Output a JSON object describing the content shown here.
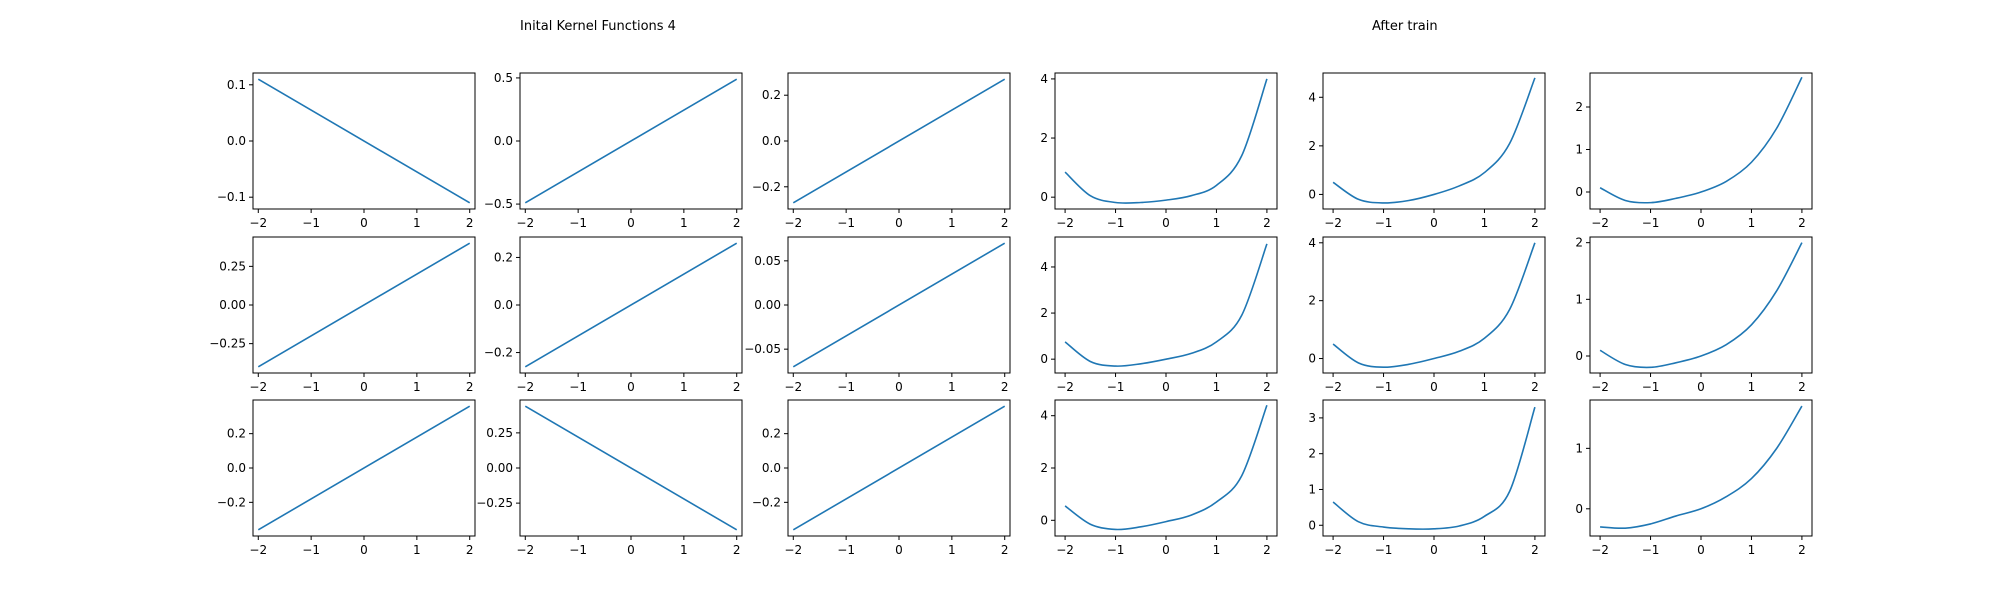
{
  "figure": {
    "left_title": "Inital Kernel Functions 4",
    "right_title": "After train",
    "line_color": "#1f77b4",
    "axes_color": "#000000",
    "background": "#ffffff"
  },
  "chart_data": [
    {
      "type": "line",
      "group": "initial",
      "row": 0,
      "col": 0,
      "x": [
        -2,
        2
      ],
      "y": [
        0.11,
        -0.11
      ],
      "xlim": [
        -2.1,
        2.1
      ],
      "ylim": [
        -0.121,
        0.121
      ],
      "xticks": [
        -2,
        -1,
        0,
        1,
        2
      ],
      "xtick_labels": [
        "−2",
        "−1",
        "0",
        "1",
        "2"
      ],
      "yticks": [
        -0.1,
        0,
        0.1
      ],
      "ytick_labels": [
        "−0.1",
        "0.0",
        "0.1"
      ],
      "grid": false
    },
    {
      "type": "line",
      "group": "initial",
      "row": 0,
      "col": 1,
      "x": [
        -2,
        2
      ],
      "y": [
        -0.49,
        0.49
      ],
      "xlim": [
        -2.1,
        2.1
      ],
      "ylim": [
        -0.539,
        0.539
      ],
      "xticks": [
        -2,
        -1,
        0,
        1,
        2
      ],
      "xtick_labels": [
        "−2",
        "−1",
        "0",
        "1",
        "2"
      ],
      "yticks": [
        -0.5,
        0,
        0.5
      ],
      "ytick_labels": [
        "−0.5",
        "0.0",
        "0.5"
      ],
      "grid": false
    },
    {
      "type": "line",
      "group": "initial",
      "row": 0,
      "col": 2,
      "x": [
        -2,
        2
      ],
      "y": [
        -0.27,
        0.27
      ],
      "xlim": [
        -2.1,
        2.1
      ],
      "ylim": [
        -0.297,
        0.297
      ],
      "xticks": [
        -2,
        -1,
        0,
        1,
        2
      ],
      "xtick_labels": [
        "−2",
        "−1",
        "0",
        "1",
        "2"
      ],
      "yticks": [
        -0.2,
        0,
        0.2
      ],
      "ytick_labels": [
        "−0.2",
        "0.0",
        "0.2"
      ],
      "grid": false
    },
    {
      "type": "line",
      "group": "initial",
      "row": 1,
      "col": 0,
      "x": [
        -2,
        2
      ],
      "y": [
        -0.4,
        0.4
      ],
      "xlim": [
        -2.1,
        2.1
      ],
      "ylim": [
        -0.44,
        0.44
      ],
      "xticks": [
        -2,
        -1,
        0,
        1,
        2
      ],
      "xtick_labels": [
        "−2",
        "−1",
        "0",
        "1",
        "2"
      ],
      "yticks": [
        -0.25,
        0,
        0.25
      ],
      "ytick_labels": [
        "−0.25",
        "0.00",
        "0.25"
      ],
      "grid": false
    },
    {
      "type": "line",
      "group": "initial",
      "row": 1,
      "col": 1,
      "x": [
        -2,
        2
      ],
      "y": [
        -0.26,
        0.26
      ],
      "xlim": [
        -2.1,
        2.1
      ],
      "ylim": [
        -0.286,
        0.286
      ],
      "xticks": [
        -2,
        -1,
        0,
        1,
        2
      ],
      "xtick_labels": [
        "−2",
        "−1",
        "0",
        "1",
        "2"
      ],
      "yticks": [
        -0.2,
        0,
        0.2
      ],
      "ytick_labels": [
        "−0.2",
        "0.0",
        "0.2"
      ],
      "grid": false
    },
    {
      "type": "line",
      "group": "initial",
      "row": 1,
      "col": 2,
      "x": [
        -2,
        2
      ],
      "y": [
        -0.07,
        0.07
      ],
      "xlim": [
        -2.1,
        2.1
      ],
      "ylim": [
        -0.077,
        0.077
      ],
      "xticks": [
        -2,
        -1,
        0,
        1,
        2
      ],
      "xtick_labels": [
        "−2",
        "−1",
        "0",
        "1",
        "2"
      ],
      "yticks": [
        -0.05,
        0,
        0.05
      ],
      "ytick_labels": [
        "−0.05",
        "0.00",
        "0.05"
      ],
      "grid": false
    },
    {
      "type": "line",
      "group": "initial",
      "row": 2,
      "col": 0,
      "x": [
        -2,
        2
      ],
      "y": [
        -0.36,
        0.36
      ],
      "xlim": [
        -2.1,
        2.1
      ],
      "ylim": [
        -0.396,
        0.396
      ],
      "xticks": [
        -2,
        -1,
        0,
        1,
        2
      ],
      "xtick_labels": [
        "−2",
        "−1",
        "0",
        "1",
        "2"
      ],
      "yticks": [
        -0.2,
        0,
        0.2
      ],
      "ytick_labels": [
        "−0.2",
        "0.0",
        "0.2"
      ],
      "grid": false
    },
    {
      "type": "line",
      "group": "initial",
      "row": 2,
      "col": 1,
      "x": [
        -2,
        2
      ],
      "y": [
        0.44,
        -0.44
      ],
      "xlim": [
        -2.1,
        2.1
      ],
      "ylim": [
        -0.484,
        0.484
      ],
      "xticks": [
        -2,
        -1,
        0,
        1,
        2
      ],
      "xtick_labels": [
        "−2",
        "−1",
        "0",
        "1",
        "2"
      ],
      "yticks": [
        -0.25,
        0,
        0.25
      ],
      "ytick_labels": [
        "−0.25",
        "0.00",
        "0.25"
      ],
      "grid": false
    },
    {
      "type": "line",
      "group": "initial",
      "row": 2,
      "col": 2,
      "x": [
        -2,
        2
      ],
      "y": [
        -0.36,
        0.36
      ],
      "xlim": [
        -2.1,
        2.1
      ],
      "ylim": [
        -0.396,
        0.396
      ],
      "xticks": [
        -2,
        -1,
        0,
        1,
        2
      ],
      "xtick_labels": [
        "−2",
        "−1",
        "0",
        "1",
        "2"
      ],
      "yticks": [
        -0.2,
        0,
        0.2
      ],
      "ytick_labels": [
        "−0.2",
        "0.0",
        "0.2"
      ],
      "grid": false
    },
    {
      "type": "line",
      "group": "after",
      "row": 0,
      "col": 0,
      "x": [
        -2,
        -1.5,
        -1,
        -0.5,
        0,
        0.5,
        1,
        1.5,
        2
      ],
      "y": [
        0.85,
        0.05,
        -0.18,
        -0.18,
        -0.1,
        0.05,
        0.4,
        1.4,
        4.0
      ],
      "xlim": [
        -2.2,
        2.2
      ],
      "ylim": [
        -0.4,
        4.2
      ],
      "xticks": [
        -2,
        -1,
        0,
        1,
        2
      ],
      "xtick_labels": [
        "−2",
        "−1",
        "0",
        "1",
        "2"
      ],
      "yticks": [
        0,
        2,
        4
      ],
      "ytick_labels": [
        "0",
        "2",
        "4"
      ],
      "grid": false
    },
    {
      "type": "line",
      "group": "after",
      "row": 0,
      "col": 1,
      "x": [
        -2,
        -1.5,
        -1,
        -0.5,
        0,
        0.5,
        1,
        1.5,
        2
      ],
      "y": [
        0.5,
        -0.2,
        -0.35,
        -0.25,
        0,
        0.35,
        0.9,
        2.1,
        4.8
      ],
      "xlim": [
        -2.2,
        2.2
      ],
      "ylim": [
        -0.6,
        5.0
      ],
      "xticks": [
        -2,
        -1,
        0,
        1,
        2
      ],
      "xtick_labels": [
        "−2",
        "−1",
        "0",
        "1",
        "2"
      ],
      "yticks": [
        0,
        2,
        4
      ],
      "ytick_labels": [
        "0",
        "2",
        "4"
      ],
      "grid": false
    },
    {
      "type": "line",
      "group": "after",
      "row": 0,
      "col": 2,
      "x": [
        -2,
        -1.5,
        -1,
        -0.5,
        0,
        0.5,
        1,
        1.5,
        2
      ],
      "y": [
        0.1,
        -0.2,
        -0.25,
        -0.15,
        0,
        0.25,
        0.7,
        1.5,
        2.7
      ],
      "xlim": [
        -2.2,
        2.2
      ],
      "ylim": [
        -0.4,
        2.8
      ],
      "xticks": [
        -2,
        -1,
        0,
        1,
        2
      ],
      "xtick_labels": [
        "−2",
        "−1",
        "0",
        "1",
        "2"
      ],
      "yticks": [
        0,
        1,
        2
      ],
      "ytick_labels": [
        "0",
        "1",
        "2"
      ],
      "grid": false
    },
    {
      "type": "line",
      "group": "after",
      "row": 1,
      "col": 0,
      "x": [
        -2,
        -1.5,
        -1,
        -0.5,
        0,
        0.5,
        1,
        1.5,
        2
      ],
      "y": [
        0.75,
        -0.1,
        -0.3,
        -0.2,
        0,
        0.25,
        0.75,
        1.9,
        5.0
      ],
      "xlim": [
        -2.2,
        2.2
      ],
      "ylim": [
        -0.6,
        5.3
      ],
      "xticks": [
        -2,
        -1,
        0,
        1,
        2
      ],
      "xtick_labels": [
        "−2",
        "−1",
        "0",
        "1",
        "2"
      ],
      "yticks": [
        0,
        2,
        4
      ],
      "ytick_labels": [
        "0",
        "2",
        "4"
      ],
      "grid": false
    },
    {
      "type": "line",
      "group": "after",
      "row": 1,
      "col": 1,
      "x": [
        -2,
        -1.5,
        -1,
        -0.5,
        0,
        0.5,
        1,
        1.5,
        2
      ],
      "y": [
        0.5,
        -0.15,
        -0.3,
        -0.2,
        0,
        0.25,
        0.7,
        1.7,
        4.0
      ],
      "xlim": [
        -2.2,
        2.2
      ],
      "ylim": [
        -0.5,
        4.2
      ],
      "xticks": [
        -2,
        -1,
        0,
        1,
        2
      ],
      "xtick_labels": [
        "−2",
        "−1",
        "0",
        "1",
        "2"
      ],
      "yticks": [
        0,
        2,
        4
      ],
      "ytick_labels": [
        "0",
        "2",
        "4"
      ],
      "grid": false
    },
    {
      "type": "line",
      "group": "after",
      "row": 1,
      "col": 2,
      "x": [
        -2,
        -1.5,
        -1,
        -0.5,
        0,
        0.5,
        1,
        1.5,
        2
      ],
      "y": [
        0.1,
        -0.15,
        -0.2,
        -0.12,
        0,
        0.2,
        0.55,
        1.15,
        2.0
      ],
      "xlim": [
        -2.2,
        2.2
      ],
      "ylim": [
        -0.3,
        2.1
      ],
      "xticks": [
        -2,
        -1,
        0,
        1,
        2
      ],
      "xtick_labels": [
        "−2",
        "−1",
        "0",
        "1",
        "2"
      ],
      "yticks": [
        0,
        1,
        2
      ],
      "ytick_labels": [
        "0",
        "1",
        "2"
      ],
      "grid": false
    },
    {
      "type": "line",
      "group": "after",
      "row": 2,
      "col": 0,
      "x": [
        -2,
        -1.5,
        -1,
        -0.5,
        0,
        0.5,
        1,
        1.5,
        2
      ],
      "y": [
        0.55,
        -0.15,
        -0.35,
        -0.25,
        -0.05,
        0.2,
        0.7,
        1.7,
        4.4
      ],
      "xlim": [
        -2.2,
        2.2
      ],
      "ylim": [
        -0.6,
        4.6
      ],
      "xticks": [
        -2,
        -1,
        0,
        1,
        2
      ],
      "xtick_labels": [
        "−2",
        "−1",
        "0",
        "1",
        "2"
      ],
      "yticks": [
        0,
        2,
        4
      ],
      "ytick_labels": [
        "0",
        "2",
        "4"
      ],
      "grid": false
    },
    {
      "type": "line",
      "group": "after",
      "row": 2,
      "col": 1,
      "x": [
        -2,
        -1.5,
        -1,
        -0.5,
        0,
        0.5,
        1,
        1.5,
        2
      ],
      "y": [
        0.65,
        0.1,
        -0.05,
        -0.1,
        -0.1,
        -0.02,
        0.25,
        0.95,
        3.3
      ],
      "xlim": [
        -2.2,
        2.2
      ],
      "ylim": [
        -0.3,
        3.5
      ],
      "xticks": [
        -2,
        -1,
        0,
        1,
        2
      ],
      "xtick_labels": [
        "−2",
        "−1",
        "0",
        "1",
        "2"
      ],
      "yticks": [
        0,
        1,
        2,
        3
      ],
      "ytick_labels": [
        "0",
        "1",
        "2",
        "3"
      ],
      "grid": false
    },
    {
      "type": "line",
      "group": "after",
      "row": 2,
      "col": 2,
      "x": [
        -2,
        -1.5,
        -1,
        -0.5,
        0,
        0.5,
        1,
        1.5,
        2
      ],
      "y": [
        -0.3,
        -0.32,
        -0.25,
        -0.12,
        0,
        0.2,
        0.5,
        1.0,
        1.7
      ],
      "xlim": [
        -2.2,
        2.2
      ],
      "ylim": [
        -0.45,
        1.8
      ],
      "xticks": [
        -2,
        -1,
        0,
        1,
        2
      ],
      "xtick_labels": [
        "−2",
        "−1",
        "0",
        "1",
        "2"
      ],
      "yticks": [
        0,
        1
      ],
      "ytick_labels": [
        "0",
        "1"
      ],
      "grid": false
    }
  ]
}
